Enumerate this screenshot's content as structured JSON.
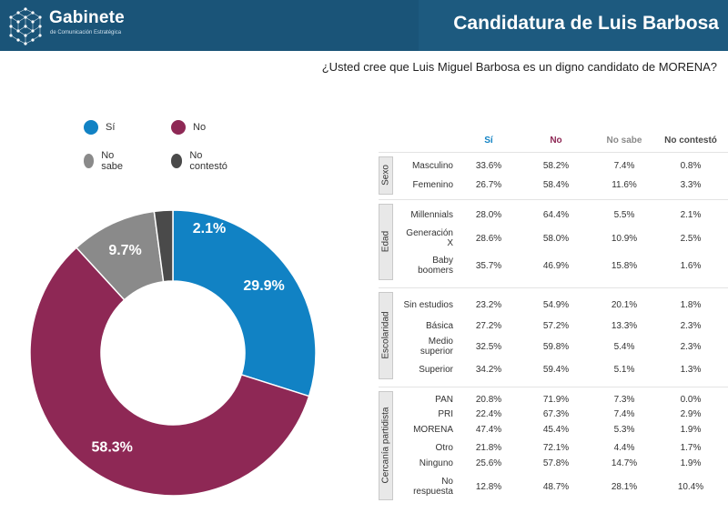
{
  "header": {
    "brand": "Gabinete",
    "brand_subtitle": "de Comunicación Estratégica",
    "title": "Candidatura de Luis Barbosa"
  },
  "question": "¿Usted cree que Luis Miguel Barbosa es un digno candidato de MORENA?",
  "colors": {
    "si": "#1182c4",
    "no": "#8e2855",
    "no_sabe": "#8a8a8a",
    "no_contesto": "#4a4a4a"
  },
  "legend": [
    {
      "label": "Sí",
      "color": "#1182c4"
    },
    {
      "label": "No",
      "color": "#8e2855"
    },
    {
      "label": "No sabe",
      "color": "#8a8a8a"
    },
    {
      "label": "No contestó",
      "color": "#4a4a4a"
    }
  ],
  "chart_data": [
    {
      "type": "pie",
      "variant": "donut",
      "categories": [
        "Sí",
        "No",
        "No sabe",
        "No contestó"
      ],
      "values": [
        29.9,
        58.3,
        9.7,
        2.1
      ],
      "data_labels": [
        "29.9%",
        "58.3%",
        "9.7%",
        "2.1%"
      ],
      "colors": [
        "#1182c4",
        "#8e2855",
        "#8a8a8a",
        "#4a4a4a"
      ],
      "legend_position": "top-left"
    },
    {
      "type": "table",
      "columns": [
        "Sí",
        "No",
        "No sabe",
        "No contestó"
      ],
      "column_colors": [
        "#1182c4",
        "#8e2855",
        "#8a8a8a",
        "#4a4a4a"
      ],
      "groups": [
        {
          "name": "Sexo",
          "rows": [
            {
              "label": "Masculino",
              "values": [
                "33.6%",
                "58.2%",
                "7.4%",
                "0.8%"
              ]
            },
            {
              "label": "Femenino",
              "values": [
                "26.7%",
                "58.4%",
                "11.6%",
                "3.3%"
              ]
            }
          ]
        },
        {
          "name": "Edad",
          "rows": [
            {
              "label": "Millennials",
              "values": [
                "28.0%",
                "64.4%",
                "5.5%",
                "2.1%"
              ]
            },
            {
              "label": "Generación X",
              "values": [
                "28.6%",
                "58.0%",
                "10.9%",
                "2.5%"
              ]
            },
            {
              "label": "Baby boomers",
              "values": [
                "35.7%",
                "46.9%",
                "15.8%",
                "1.6%"
              ]
            }
          ]
        },
        {
          "name": "Escolaridad",
          "rows": [
            {
              "label": "Sin estudios",
              "values": [
                "23.2%",
                "54.9%",
                "20.1%",
                "1.8%"
              ]
            },
            {
              "label": "Básica",
              "values": [
                "27.2%",
                "57.2%",
                "13.3%",
                "2.3%"
              ]
            },
            {
              "label": "Medio superior",
              "values": [
                "32.5%",
                "59.8%",
                "5.4%",
                "2.3%"
              ]
            },
            {
              "label": "Superior",
              "values": [
                "34.2%",
                "59.4%",
                "5.1%",
                "1.3%"
              ]
            }
          ]
        },
        {
          "name": "Cercanía partidista",
          "rows": [
            {
              "label": "PAN",
              "values": [
                "20.8%",
                "71.9%",
                "7.3%",
                "0.0%"
              ]
            },
            {
              "label": "PRI",
              "values": [
                "22.4%",
                "67.3%",
                "7.4%",
                "2.9%"
              ]
            },
            {
              "label": "MORENA",
              "values": [
                "47.4%",
                "45.4%",
                "5.3%",
                "1.9%"
              ]
            },
            {
              "label": "Otro",
              "values": [
                "21.8%",
                "72.1%",
                "4.4%",
                "1.7%"
              ]
            },
            {
              "label": "Ninguno",
              "values": [
                "25.6%",
                "57.8%",
                "14.7%",
                "1.9%"
              ]
            },
            {
              "label": "No respuesta",
              "values": [
                "12.8%",
                "48.7%",
                "28.1%",
                "10.4%"
              ]
            }
          ]
        }
      ]
    }
  ]
}
